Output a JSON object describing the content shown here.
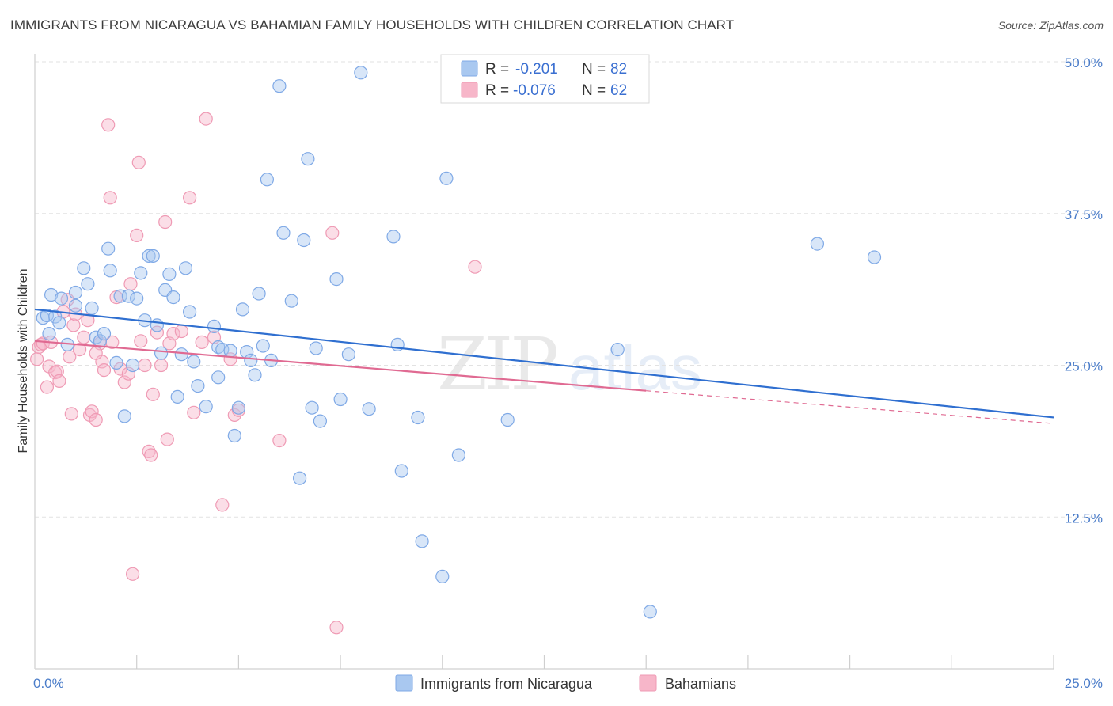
{
  "header": {
    "title": "IMMIGRANTS FROM NICARAGUA VS BAHAMIAN FAMILY HOUSEHOLDS WITH CHILDREN CORRELATION CHART",
    "source": "Source: ZipAtlas.com"
  },
  "watermark": {
    "text_zip": "ZIP",
    "text_atlas": "atlas"
  },
  "legend": {
    "r_label": "R =",
    "n_label": "N =",
    "entries": [
      {
        "r": "-0.201",
        "n": "82"
      },
      {
        "r": "-0.076",
        "n": "62"
      }
    ]
  },
  "colors": {
    "blue_fill": "#a9c8f0",
    "blue_stroke": "#7fa9e6",
    "blue_line": "#2f6fd0",
    "pink_fill": "#f7b6c9",
    "pink_stroke": "#ef9ab4",
    "pink_line": "#e06a92",
    "axis_text": "#4a7cc9",
    "grid": "#e2e2e2"
  },
  "chart_data": {
    "type": "scatter",
    "title": "IMMIGRANTS FROM NICARAGUA VS BAHAMIAN FAMILY HOUSEHOLDS WITH CHILDREN CORRELATION CHART",
    "xlabel": "",
    "ylabel": "Family Households with Children",
    "xlim": [
      0,
      25
    ],
    "ylim": [
      0,
      50
    ],
    "x_tick_labels": [
      {
        "value": 0,
        "label": "0.0%"
      },
      {
        "value": 25,
        "label": "25.0%"
      }
    ],
    "y_tick_labels": [
      {
        "value": 50,
        "label": "50.0%"
      },
      {
        "value": 37.5,
        "label": "37.5%"
      },
      {
        "value": 25,
        "label": "25.0%"
      },
      {
        "value": 12.5,
        "label": "12.5%"
      }
    ],
    "grid": true,
    "legend_position": "top-center",
    "series": [
      {
        "name": "Immigrants from Nicaragua",
        "color": "blue",
        "r": -0.201,
        "n": 82,
        "trend": {
          "x": [
            0,
            25
          ],
          "y": [
            29.6,
            20.7
          ]
        },
        "points": [
          [
            0.2,
            28.9
          ],
          [
            0.3,
            29.1
          ],
          [
            0.35,
            27.6
          ],
          [
            0.4,
            30.8
          ],
          [
            0.5,
            29.0
          ],
          [
            0.6,
            28.5
          ],
          [
            0.65,
            30.5
          ],
          [
            0.8,
            26.7
          ],
          [
            1.0,
            29.9
          ],
          [
            1.0,
            31.0
          ],
          [
            1.2,
            33.0
          ],
          [
            1.3,
            31.7
          ],
          [
            1.4,
            29.7
          ],
          [
            1.5,
            27.3
          ],
          [
            1.6,
            27.0
          ],
          [
            1.7,
            27.6
          ],
          [
            1.8,
            34.6
          ],
          [
            1.85,
            32.8
          ],
          [
            2.0,
            25.2
          ],
          [
            2.1,
            30.7
          ],
          [
            2.2,
            20.8
          ],
          [
            2.3,
            30.7
          ],
          [
            2.4,
            25.0
          ],
          [
            2.5,
            30.5
          ],
          [
            2.6,
            32.6
          ],
          [
            2.7,
            28.7
          ],
          [
            2.8,
            34.0
          ],
          [
            2.9,
            34.0
          ],
          [
            3.0,
            28.3
          ],
          [
            3.1,
            26.0
          ],
          [
            3.2,
            31.2
          ],
          [
            3.3,
            32.5
          ],
          [
            3.4,
            30.6
          ],
          [
            3.5,
            22.4
          ],
          [
            3.6,
            25.9
          ],
          [
            3.7,
            33.0
          ],
          [
            3.8,
            29.4
          ],
          [
            3.9,
            25.3
          ],
          [
            4.0,
            23.3
          ],
          [
            4.2,
            21.6
          ],
          [
            4.4,
            28.2
          ],
          [
            4.5,
            26.5
          ],
          [
            4.5,
            24.0
          ],
          [
            4.6,
            26.3
          ],
          [
            4.8,
            26.2
          ],
          [
            4.9,
            19.2
          ],
          [
            5.0,
            21.5
          ],
          [
            5.1,
            29.6
          ],
          [
            5.2,
            26.1
          ],
          [
            5.3,
            25.4
          ],
          [
            5.4,
            24.2
          ],
          [
            5.5,
            30.9
          ],
          [
            5.6,
            26.6
          ],
          [
            5.7,
            40.3
          ],
          [
            5.8,
            25.4
          ],
          [
            6.0,
            48.0
          ],
          [
            6.1,
            35.9
          ],
          [
            6.3,
            30.3
          ],
          [
            6.5,
            15.7
          ],
          [
            6.6,
            35.3
          ],
          [
            6.7,
            42.0
          ],
          [
            6.8,
            21.5
          ],
          [
            6.9,
            26.4
          ],
          [
            7.0,
            20.4
          ],
          [
            7.4,
            32.1
          ],
          [
            7.5,
            22.2
          ],
          [
            7.7,
            25.9
          ],
          [
            8.0,
            49.1
          ],
          [
            8.2,
            21.4
          ],
          [
            8.8,
            35.6
          ],
          [
            8.9,
            26.7
          ],
          [
            9.0,
            16.3
          ],
          [
            9.4,
            20.7
          ],
          [
            9.5,
            10.5
          ],
          [
            10.0,
            7.6
          ],
          [
            10.1,
            40.4
          ],
          [
            10.4,
            17.6
          ],
          [
            11.6,
            20.5
          ],
          [
            14.3,
            26.3
          ],
          [
            15.1,
            4.7
          ],
          [
            19.2,
            35.0
          ],
          [
            20.6,
            33.9
          ]
        ]
      },
      {
        "name": "Bahamians",
        "color": "pink",
        "r": -0.076,
        "n": 62,
        "trend": {
          "x": [
            0,
            15
          ],
          "y": [
            27.0,
            22.9
          ]
        },
        "trend_extension": {
          "x": [
            15,
            25
          ],
          "y": [
            22.9,
            20.2
          ]
        },
        "points": [
          [
            0.1,
            26.5
          ],
          [
            0.15,
            26.7
          ],
          [
            0.2,
            26.8
          ],
          [
            0.3,
            23.2
          ],
          [
            0.35,
            24.9
          ],
          [
            0.4,
            26.9
          ],
          [
            0.5,
            24.4
          ],
          [
            0.55,
            24.5
          ],
          [
            0.6,
            23.7
          ],
          [
            0.7,
            29.4
          ],
          [
            0.8,
            30.4
          ],
          [
            0.85,
            25.7
          ],
          [
            0.9,
            21.0
          ],
          [
            0.95,
            28.3
          ],
          [
            1.0,
            29.2
          ],
          [
            1.1,
            26.3
          ],
          [
            1.2,
            27.3
          ],
          [
            1.3,
            28.7
          ],
          [
            1.35,
            20.9
          ],
          [
            1.4,
            21.2
          ],
          [
            1.5,
            20.5
          ],
          [
            1.6,
            26.8
          ],
          [
            1.65,
            25.3
          ],
          [
            1.7,
            24.6
          ],
          [
            1.8,
            44.8
          ],
          [
            1.85,
            38.8
          ],
          [
            1.9,
            26.9
          ],
          [
            2.0,
            30.6
          ],
          [
            2.1,
            24.7
          ],
          [
            2.2,
            23.6
          ],
          [
            2.3,
            24.3
          ],
          [
            2.35,
            31.7
          ],
          [
            2.4,
            7.8
          ],
          [
            2.5,
            35.7
          ],
          [
            2.55,
            41.7
          ],
          [
            2.6,
            27.0
          ],
          [
            2.7,
            25.0
          ],
          [
            2.8,
            17.9
          ],
          [
            2.85,
            17.6
          ],
          [
            2.9,
            22.6
          ],
          [
            3.0,
            27.7
          ],
          [
            3.1,
            25.0
          ],
          [
            3.2,
            36.8
          ],
          [
            3.25,
            18.9
          ],
          [
            3.3,
            26.8
          ],
          [
            3.4,
            27.6
          ],
          [
            3.6,
            27.8
          ],
          [
            3.8,
            38.8
          ],
          [
            3.9,
            21.1
          ],
          [
            4.1,
            26.9
          ],
          [
            4.2,
            45.3
          ],
          [
            4.4,
            27.3
          ],
          [
            4.6,
            13.5
          ],
          [
            4.8,
            25.5
          ],
          [
            4.9,
            20.9
          ],
          [
            5.0,
            21.3
          ],
          [
            6.0,
            18.8
          ],
          [
            7.3,
            35.9
          ],
          [
            7.4,
            3.4
          ],
          [
            10.8,
            33.1
          ],
          [
            0.05,
            25.5
          ],
          [
            1.5,
            26.0
          ]
        ]
      }
    ],
    "bottom_legend": [
      "Immigrants from Nicaragua",
      "Bahamians"
    ]
  }
}
